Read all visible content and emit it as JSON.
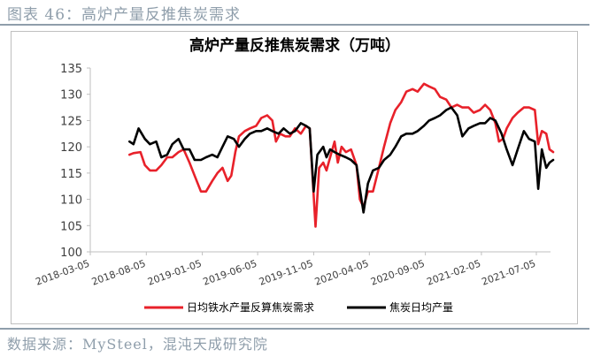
{
  "figure_label": "图表 46：高炉产量反推焦炭需求",
  "source": "数据来源：MySteel，混沌天成研究院",
  "colors": {
    "red_series": "#e8212a",
    "black_series": "#000000",
    "caption": "#8f9eab",
    "axis": "#bfbfbf"
  },
  "chart_data": {
    "type": "line",
    "title": "高炉产量反推焦炭需求（万吨）",
    "xlabel": "",
    "ylabel": "",
    "ylim": [
      100,
      135
    ],
    "yticks": [
      100,
      105,
      110,
      115,
      120,
      125,
      130,
      135
    ],
    "xticks": [
      "2018-03-05",
      "2018-08-05",
      "2019-01-05",
      "2019-06-05",
      "2019-11-05",
      "2020-04-05",
      "2020-09-05",
      "2021-02-05",
      "2021-07-05"
    ],
    "grid": false,
    "legend_position": "bottom",
    "series": [
      {
        "name": "日均铁水产量反算焦炭需求",
        "color": "#e8212a",
        "points": [
          [
            "2018-06-20",
            118.5
          ],
          [
            "2018-07-01",
            118.8
          ],
          [
            "2018-07-20",
            119.0
          ],
          [
            "2018-08-01",
            116.5
          ],
          [
            "2018-08-15",
            115.5
          ],
          [
            "2018-09-01",
            115.5
          ],
          [
            "2018-09-15",
            116.5
          ],
          [
            "2018-10-01",
            118.0
          ],
          [
            "2018-10-15",
            118.0
          ],
          [
            "2018-11-01",
            119.0
          ],
          [
            "2018-11-15",
            119.5
          ],
          [
            "2018-12-01",
            117.0
          ],
          [
            "2018-12-15",
            114.5
          ],
          [
            "2019-01-01",
            111.5
          ],
          [
            "2019-01-15",
            111.5
          ],
          [
            "2019-02-01",
            113.5
          ],
          [
            "2019-02-15",
            115.0
          ],
          [
            "2019-03-01",
            116.0
          ],
          [
            "2019-03-15",
            113.5
          ],
          [
            "2019-03-25",
            114.5
          ],
          [
            "2019-04-05",
            119.0
          ],
          [
            "2019-04-15",
            122.0
          ],
          [
            "2019-05-01",
            123.0
          ],
          [
            "2019-05-15",
            123.5
          ],
          [
            "2019-06-01",
            124.0
          ],
          [
            "2019-06-15",
            125.5
          ],
          [
            "2019-07-01",
            126.0
          ],
          [
            "2019-07-15",
            125.0
          ],
          [
            "2019-07-25",
            121.0
          ],
          [
            "2019-08-05",
            122.5
          ],
          [
            "2019-08-20",
            122.0
          ],
          [
            "2019-09-01",
            122.0
          ],
          [
            "2019-09-15",
            123.5
          ],
          [
            "2019-10-01",
            122.5
          ],
          [
            "2019-10-15",
            124.0
          ],
          [
            "2019-10-25",
            123.5
          ],
          [
            "2019-11-10",
            104.8
          ],
          [
            "2019-11-20",
            116.0
          ],
          [
            "2019-12-01",
            117.0
          ],
          [
            "2019-12-10",
            115.5
          ],
          [
            "2019-12-20",
            118.0
          ],
          [
            "2020-01-01",
            121.0
          ],
          [
            "2020-01-10",
            117.0
          ],
          [
            "2020-01-20",
            120.0
          ],
          [
            "2020-02-01",
            119.0
          ],
          [
            "2020-02-15",
            119.5
          ],
          [
            "2020-03-01",
            116.5
          ],
          [
            "2020-03-10",
            110.0
          ],
          [
            "2020-03-20",
            108.5
          ],
          [
            "2020-04-01",
            111.5
          ],
          [
            "2020-04-15",
            111.5
          ],
          [
            "2020-05-01",
            116.0
          ],
          [
            "2020-05-15",
            120.0
          ],
          [
            "2020-06-01",
            124.5
          ],
          [
            "2020-06-15",
            127.0
          ],
          [
            "2020-07-01",
            128.5
          ],
          [
            "2020-07-15",
            130.5
          ],
          [
            "2020-08-01",
            131.0
          ],
          [
            "2020-08-15",
            130.5
          ],
          [
            "2020-09-01",
            132.0
          ],
          [
            "2020-09-15",
            131.5
          ],
          [
            "2020-10-01",
            131.0
          ],
          [
            "2020-10-15",
            129.5
          ],
          [
            "2020-11-01",
            129.0
          ],
          [
            "2020-11-15",
            127.5
          ],
          [
            "2020-12-01",
            128.0
          ],
          [
            "2020-12-15",
            127.5
          ],
          [
            "2021-01-01",
            127.5
          ],
          [
            "2021-01-15",
            126.5
          ],
          [
            "2021-02-01",
            127.0
          ],
          [
            "2021-02-15",
            128.0
          ],
          [
            "2021-03-01",
            127.0
          ],
          [
            "2021-03-15",
            124.5
          ],
          [
            "2021-03-25",
            121.0
          ],
          [
            "2021-04-05",
            121.5
          ],
          [
            "2021-04-15",
            123.5
          ],
          [
            "2021-05-01",
            125.5
          ],
          [
            "2021-05-15",
            126.5
          ],
          [
            "2021-06-01",
            127.5
          ],
          [
            "2021-06-15",
            127.5
          ],
          [
            "2021-07-01",
            127.0
          ],
          [
            "2021-07-10",
            120.5
          ],
          [
            "2021-07-20",
            123.0
          ],
          [
            "2021-08-01",
            122.5
          ],
          [
            "2021-08-10",
            119.5
          ],
          [
            "2021-08-20",
            119.0
          ]
        ]
      },
      {
        "name": "焦炭日均产量",
        "color": "#000000",
        "points": [
          [
            "2018-06-20",
            121.0
          ],
          [
            "2018-07-01",
            120.5
          ],
          [
            "2018-07-15",
            123.5
          ],
          [
            "2018-08-01",
            121.5
          ],
          [
            "2018-08-15",
            120.5
          ],
          [
            "2018-09-01",
            121.0
          ],
          [
            "2018-09-15",
            118.0
          ],
          [
            "2018-10-01",
            118.5
          ],
          [
            "2018-10-15",
            120.5
          ],
          [
            "2018-11-01",
            121.5
          ],
          [
            "2018-11-15",
            119.5
          ],
          [
            "2018-12-01",
            119.5
          ],
          [
            "2018-12-15",
            117.5
          ],
          [
            "2019-01-01",
            117.5
          ],
          [
            "2019-01-15",
            118.0
          ],
          [
            "2019-02-01",
            118.5
          ],
          [
            "2019-02-15",
            118.0
          ],
          [
            "2019-03-01",
            120.0
          ],
          [
            "2019-03-15",
            122.0
          ],
          [
            "2019-04-01",
            121.5
          ],
          [
            "2019-04-15",
            120.0
          ],
          [
            "2019-05-01",
            121.5
          ],
          [
            "2019-05-15",
            122.5
          ],
          [
            "2019-06-01",
            123.0
          ],
          [
            "2019-06-15",
            123.0
          ],
          [
            "2019-07-01",
            123.5
          ],
          [
            "2019-07-15",
            123.0
          ],
          [
            "2019-08-01",
            122.5
          ],
          [
            "2019-08-15",
            123.5
          ],
          [
            "2019-09-01",
            122.5
          ],
          [
            "2019-09-15",
            123.0
          ],
          [
            "2019-10-01",
            124.5
          ],
          [
            "2019-10-15",
            124.0
          ],
          [
            "2019-10-25",
            123.5
          ],
          [
            "2019-11-05",
            111.5
          ],
          [
            "2019-11-15",
            118.5
          ],
          [
            "2019-12-01",
            120.0
          ],
          [
            "2019-12-10",
            118.0
          ],
          [
            "2019-12-20",
            119.5
          ],
          [
            "2020-01-01",
            119.0
          ],
          [
            "2020-01-15",
            118.5
          ],
          [
            "2020-02-01",
            118.0
          ],
          [
            "2020-02-15",
            117.5
          ],
          [
            "2020-03-01",
            116.5
          ],
          [
            "2020-03-10",
            112.0
          ],
          [
            "2020-03-20",
            107.5
          ],
          [
            "2020-04-01",
            113.0
          ],
          [
            "2020-04-15",
            115.5
          ],
          [
            "2020-05-01",
            116.0
          ],
          [
            "2020-05-15",
            117.5
          ],
          [
            "2020-06-01",
            118.5
          ],
          [
            "2020-06-15",
            120.0
          ],
          [
            "2020-07-01",
            122.0
          ],
          [
            "2020-07-15",
            122.5
          ],
          [
            "2020-08-01",
            122.5
          ],
          [
            "2020-08-15",
            123.0
          ],
          [
            "2020-09-01",
            124.0
          ],
          [
            "2020-09-15",
            125.0
          ],
          [
            "2020-10-01",
            125.5
          ],
          [
            "2020-10-15",
            126.0
          ],
          [
            "2020-11-01",
            127.0
          ],
          [
            "2020-11-15",
            127.5
          ],
          [
            "2020-12-01",
            126.0
          ],
          [
            "2020-12-15",
            122.0
          ],
          [
            "2021-01-01",
            123.5
          ],
          [
            "2021-01-15",
            124.0
          ],
          [
            "2021-02-01",
            124.5
          ],
          [
            "2021-02-15",
            124.5
          ],
          [
            "2021-03-01",
            125.5
          ],
          [
            "2021-03-15",
            125.0
          ],
          [
            "2021-04-01",
            122.5
          ],
          [
            "2021-04-15",
            119.5
          ],
          [
            "2021-05-01",
            116.5
          ],
          [
            "2021-05-15",
            119.5
          ],
          [
            "2021-06-01",
            123.0
          ],
          [
            "2021-06-15",
            121.5
          ],
          [
            "2021-07-01",
            121.0
          ],
          [
            "2021-07-10",
            112.0
          ],
          [
            "2021-07-20",
            119.5
          ],
          [
            "2021-08-01",
            116.0
          ],
          [
            "2021-08-10",
            117.0
          ],
          [
            "2021-08-20",
            117.5
          ]
        ]
      }
    ]
  }
}
